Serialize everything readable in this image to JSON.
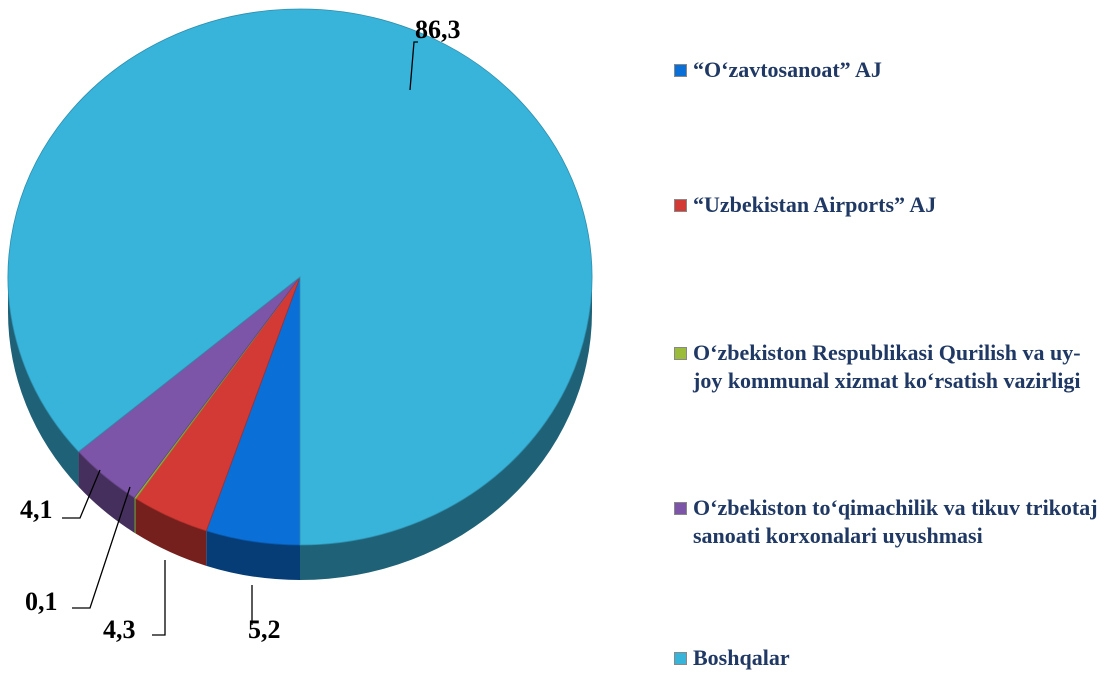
{
  "chart_data": {
    "type": "pie",
    "categories": [
      "“O‘zavtosanoat” AJ",
      "“Uzbekistan Airports” AJ",
      "O‘zbekiston Respublikasi Qurilish va uy-joy kommunal xizmat ko‘rsatish vazirligi",
      "O‘zbekiston to‘qimachilik va tikuv trikotaj sanoati korxonalari uyushmasi",
      "Boshqalar"
    ],
    "values": [
      5.2,
      4.3,
      0.1,
      4.1,
      86.3
    ],
    "value_labels": [
      "5,2",
      "4,3",
      "0,1",
      "4,1",
      "86,3"
    ],
    "colors": [
      "#0a6fd6",
      "#d43a35",
      "#9bbb3b",
      "#7d55a8",
      "#38b3d9"
    ],
    "legend": "right"
  }
}
